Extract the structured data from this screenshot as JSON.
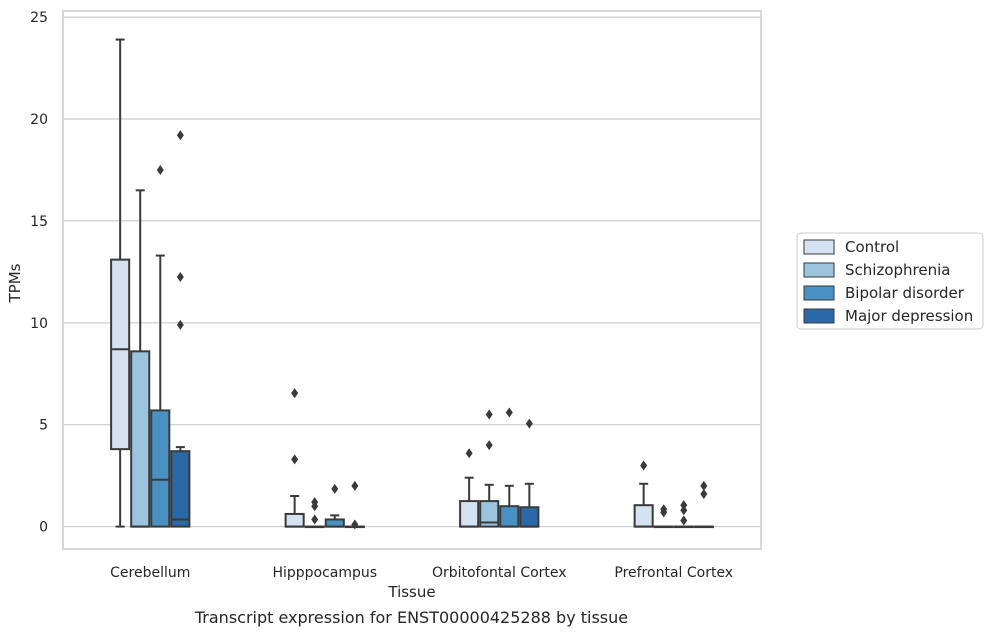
{
  "caption": "Transcript expression for ENST00000425288 by tissue",
  "chart_data": {
    "type": "box",
    "xlabel": "Tissue",
    "ylabel": "TPMs",
    "ylim": [
      -1.1,
      25.3
    ],
    "yticks": [
      0,
      5,
      10,
      15,
      20,
      25
    ],
    "grid": "horizontal",
    "legend_position": "right",
    "categories": [
      "Cerebellum",
      "Hipppocampus",
      "Orbitofontal Cortex",
      "Prefrontal Cortex"
    ],
    "series": [
      {
        "name": "Control",
        "color": "#d4e2f2",
        "boxes": [
          {
            "whislo": 0,
            "q1": 3.8,
            "med": 8.7,
            "q3": 13.1,
            "whishi": 23.9,
            "fliers": []
          },
          {
            "whislo": 0,
            "q1": 0,
            "med": 0,
            "q3": 0.62,
            "whishi": 1.5,
            "fliers": [
              3.3,
              6.55
            ]
          },
          {
            "whislo": 0,
            "q1": 0,
            "med": 0,
            "q3": 1.25,
            "whishi": 2.4,
            "fliers": [
              3.6
            ]
          },
          {
            "whislo": 0,
            "q1": 0,
            "med": 0,
            "q3": 1.05,
            "whishi": 2.1,
            "fliers": [
              3.0
            ]
          }
        ]
      },
      {
        "name": "Schizophrenia",
        "color": "#9ac4de",
        "boxes": [
          {
            "whislo": 0,
            "q1": 0,
            "med": 0,
            "q3": 8.6,
            "whishi": 16.5,
            "fliers": []
          },
          {
            "whislo": 0,
            "q1": 0,
            "med": 0,
            "q3": 0,
            "whishi": 0,
            "fliers": [
              0.35,
              1.0,
              1.2
            ]
          },
          {
            "whislo": 0,
            "q1": 0,
            "med": 0.2,
            "q3": 1.25,
            "whishi": 2.05,
            "fliers": [
              4.0,
              5.5
            ]
          },
          {
            "whislo": 0,
            "q1": 0,
            "med": 0,
            "q3": 0,
            "whishi": 0,
            "fliers": [
              0.7,
              0.85
            ]
          }
        ]
      },
      {
        "name": "Bipolar disorder",
        "color": "#4a90c2",
        "boxes": [
          {
            "whislo": 0,
            "q1": 0,
            "med": 2.3,
            "q3": 5.7,
            "whishi": 13.3,
            "fliers": [
              17.5
            ]
          },
          {
            "whislo": 0,
            "q1": 0,
            "med": 0,
            "q3": 0.35,
            "whishi": 0.55,
            "fliers": [
              1.85
            ]
          },
          {
            "whislo": 0,
            "q1": 0,
            "med": 0,
            "q3": 1.0,
            "whishi": 2.0,
            "fliers": [
              5.6
            ]
          },
          {
            "whislo": 0,
            "q1": 0,
            "med": 0,
            "q3": 0,
            "whishi": 0,
            "fliers": [
              0.3,
              0.8,
              1.05
            ]
          }
        ]
      },
      {
        "name": "Major depression",
        "color": "#2a68a8",
        "boxes": [
          {
            "whislo": 0,
            "q1": 0,
            "med": 0.35,
            "q3": 3.7,
            "whishi": 3.9,
            "fliers": [
              9.9,
              12.25,
              19.2
            ]
          },
          {
            "whislo": 0,
            "q1": 0,
            "med": 0,
            "q3": 0,
            "whishi": 0,
            "fliers": [
              0.1,
              2.0
            ]
          },
          {
            "whislo": 0,
            "q1": 0,
            "med": 0,
            "q3": 0.95,
            "whishi": 2.1,
            "fliers": [
              5.05
            ]
          },
          {
            "whislo": 0,
            "q1": 0,
            "med": 0,
            "q3": 0,
            "whishi": 0,
            "fliers": [
              1.6,
              2.0
            ]
          }
        ]
      }
    ]
  }
}
